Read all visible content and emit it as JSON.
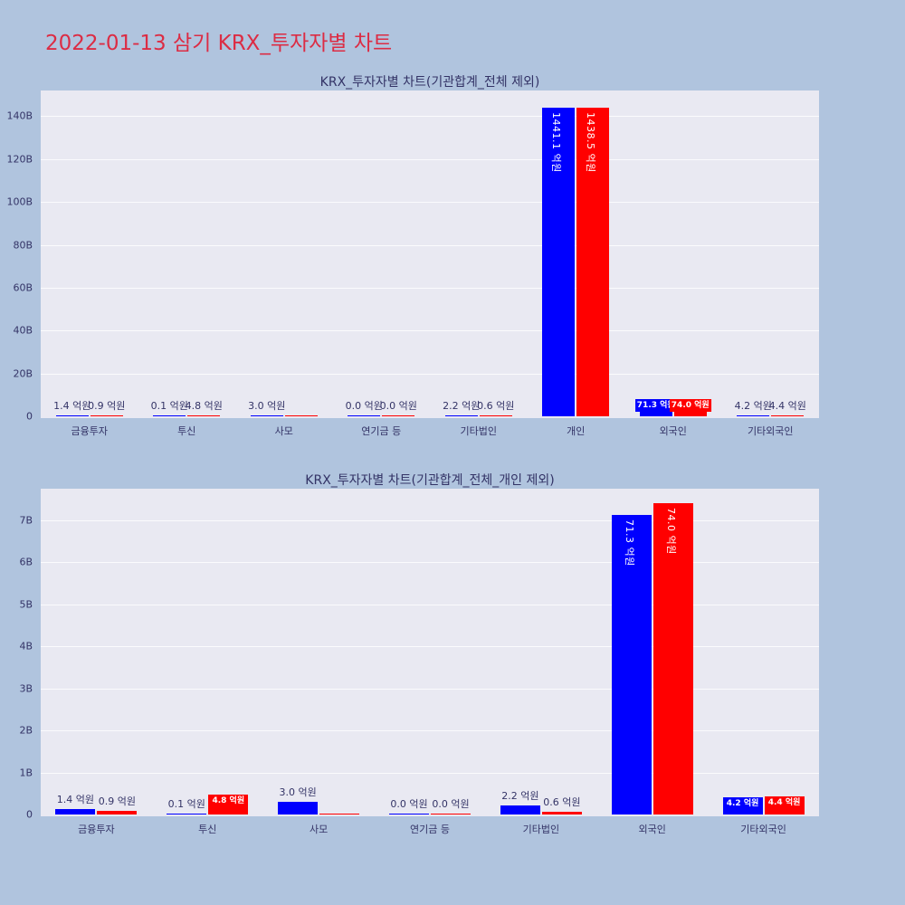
{
  "page": {
    "title": "2022-01-13 삼기 KRX_투자자별 차트"
  },
  "colors": {
    "page_bg": "#b0c4de",
    "plot_bg": "#e9e9f2",
    "title_red": "#dc2c44",
    "text_navy": "#333366",
    "bar_blue": "#0000ff",
    "bar_red": "#ff0000"
  },
  "chart_data": [
    {
      "type": "bar",
      "title": "KRX_투자자별 차트(기관합계_전체 제외)",
      "value_unit": "억원",
      "y_axis_unit": "B",
      "grid": true,
      "legend": "none",
      "categories": [
        "금융투자",
        "투신",
        "사모",
        "연기금 등",
        "기타법인",
        "개인",
        "외국인",
        "기타외국인"
      ],
      "ytick_labels": [
        "0",
        "20B",
        "40B",
        "60B",
        "80B",
        "100B",
        "120B",
        "140B"
      ],
      "ytick_values": [
        0,
        20,
        40,
        60,
        80,
        100,
        120,
        140
      ],
      "ylim": [
        0,
        152
      ],
      "series": [
        {
          "name": "blue",
          "color": "#0000ff",
          "values_eok": [
            1.4,
            0.1,
            3.0,
            0.0,
            2.2,
            1441.1,
            71.3,
            4.2
          ],
          "labels": [
            "1.4 억원",
            "0.1 억원",
            "3.0 억원",
            "0.0 억원",
            "2.2 억원",
            "1441.1 억원",
            "71.3 억원",
            "4.2 억원"
          ],
          "label_styles": [
            "above",
            "above",
            "above",
            "above",
            "above",
            "vertical",
            "box",
            "above"
          ]
        },
        {
          "name": "red",
          "color": "#ff0000",
          "values_eok": [
            0.9,
            4.8,
            0.0,
            0.0,
            0.6,
            1438.5,
            74.0,
            4.4
          ],
          "labels": [
            "0.9 억원",
            "4.8 억원",
            "",
            "0.0 억원",
            "0.6 억원",
            "1438.5 억원",
            "74.0 억원",
            "4.4 억원"
          ],
          "label_styles": [
            "above",
            "above",
            "none",
            "above",
            "above",
            "vertical",
            "box",
            "above"
          ]
        }
      ]
    },
    {
      "type": "bar",
      "title": "KRX_투자자별 차트(기관합계_전체_개인 제외)",
      "value_unit": "억원",
      "y_axis_unit": "B",
      "grid": true,
      "legend": "none",
      "categories": [
        "금융투자",
        "투신",
        "사모",
        "연기금 등",
        "기타법인",
        "외국인",
        "기타외국인"
      ],
      "ytick_labels": [
        "0",
        "1B",
        "2B",
        "3B",
        "4B",
        "5B",
        "6B",
        "7B"
      ],
      "ytick_values": [
        0,
        1,
        2,
        3,
        4,
        5,
        6,
        7
      ],
      "ylim": [
        0,
        7.75
      ],
      "series": [
        {
          "name": "blue",
          "color": "#0000ff",
          "values_eok": [
            1.4,
            0.1,
            3.0,
            0.0,
            2.2,
            71.3,
            4.2
          ],
          "labels": [
            "1.4 억원",
            "0.1 억원",
            "3.0 억원",
            "0.0 억원",
            "2.2 억원",
            "71.3 억원",
            "4.2 억원"
          ],
          "label_styles": [
            "above",
            "above",
            "above",
            "above",
            "above",
            "vertical",
            "box"
          ]
        },
        {
          "name": "red",
          "color": "#ff0000",
          "values_eok": [
            0.9,
            4.8,
            0.0,
            0.0,
            0.6,
            74.0,
            4.4
          ],
          "labels": [
            "0.9 억원",
            "4.8 억원",
            "",
            "0.0 억원",
            "0.6 억원",
            "74.0 억원",
            "4.4 억원"
          ],
          "label_styles": [
            "above",
            "box",
            "none",
            "above",
            "above",
            "vertical",
            "box"
          ]
        }
      ]
    }
  ]
}
